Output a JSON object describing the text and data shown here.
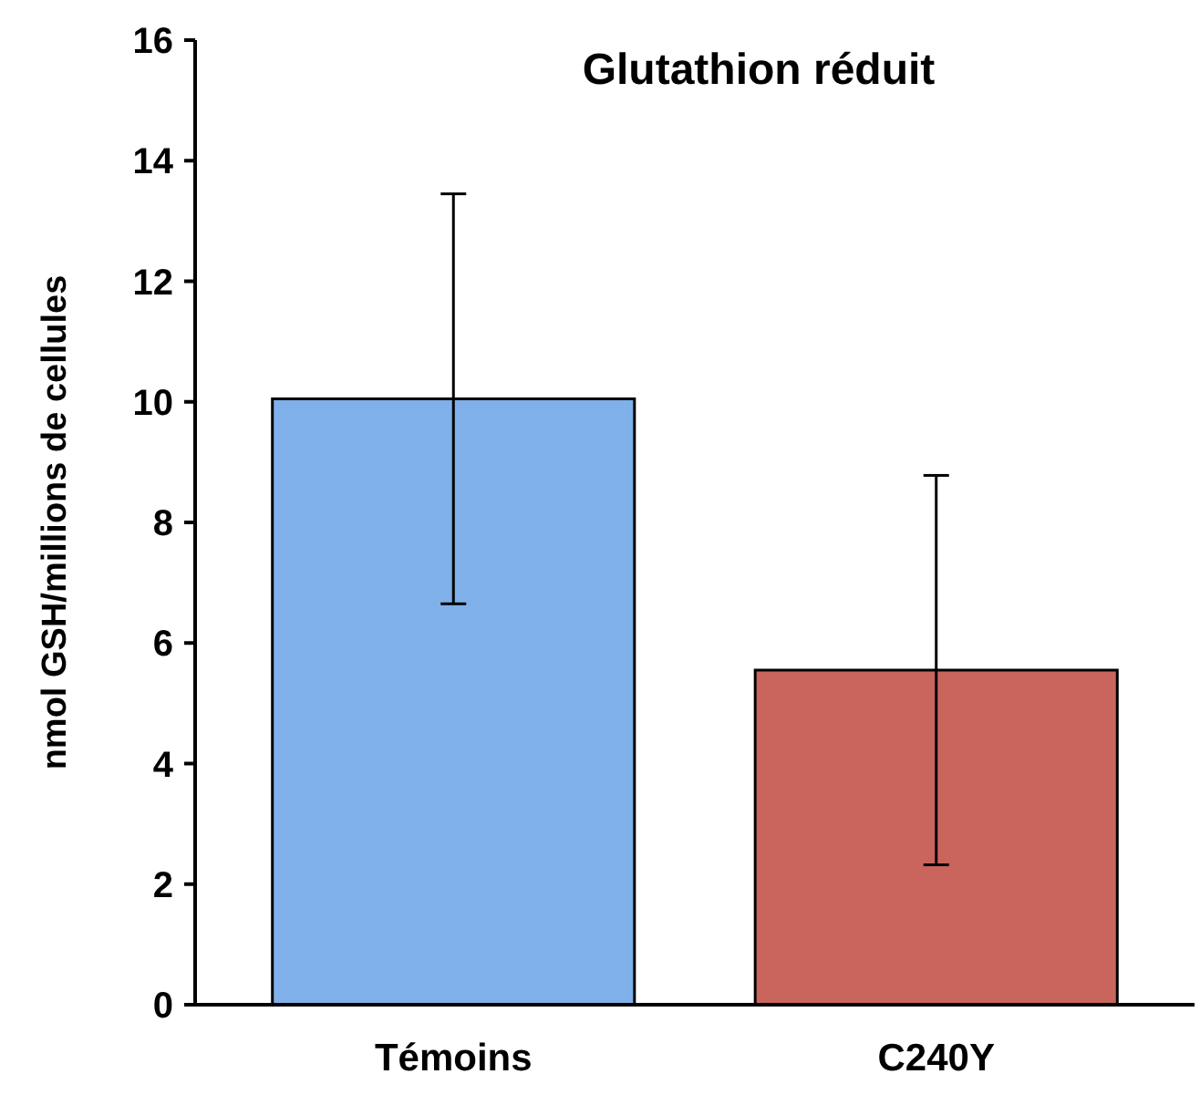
{
  "chart_data": {
    "type": "bar",
    "title": "Glutathion réduit",
    "ylabel": "nmol GSH/millions de cellules",
    "categories": [
      "Témoins",
      "C240Y"
    ],
    "values": [
      10.05,
      5.55
    ],
    "errors": [
      3.4,
      3.23
    ],
    "colors": [
      "#7fb0ea",
      "#c9655c"
    ],
    "ylim": [
      0,
      16
    ],
    "yticks": [
      0,
      2,
      4,
      6,
      8,
      10,
      12,
      14,
      16
    ],
    "grid": false
  }
}
